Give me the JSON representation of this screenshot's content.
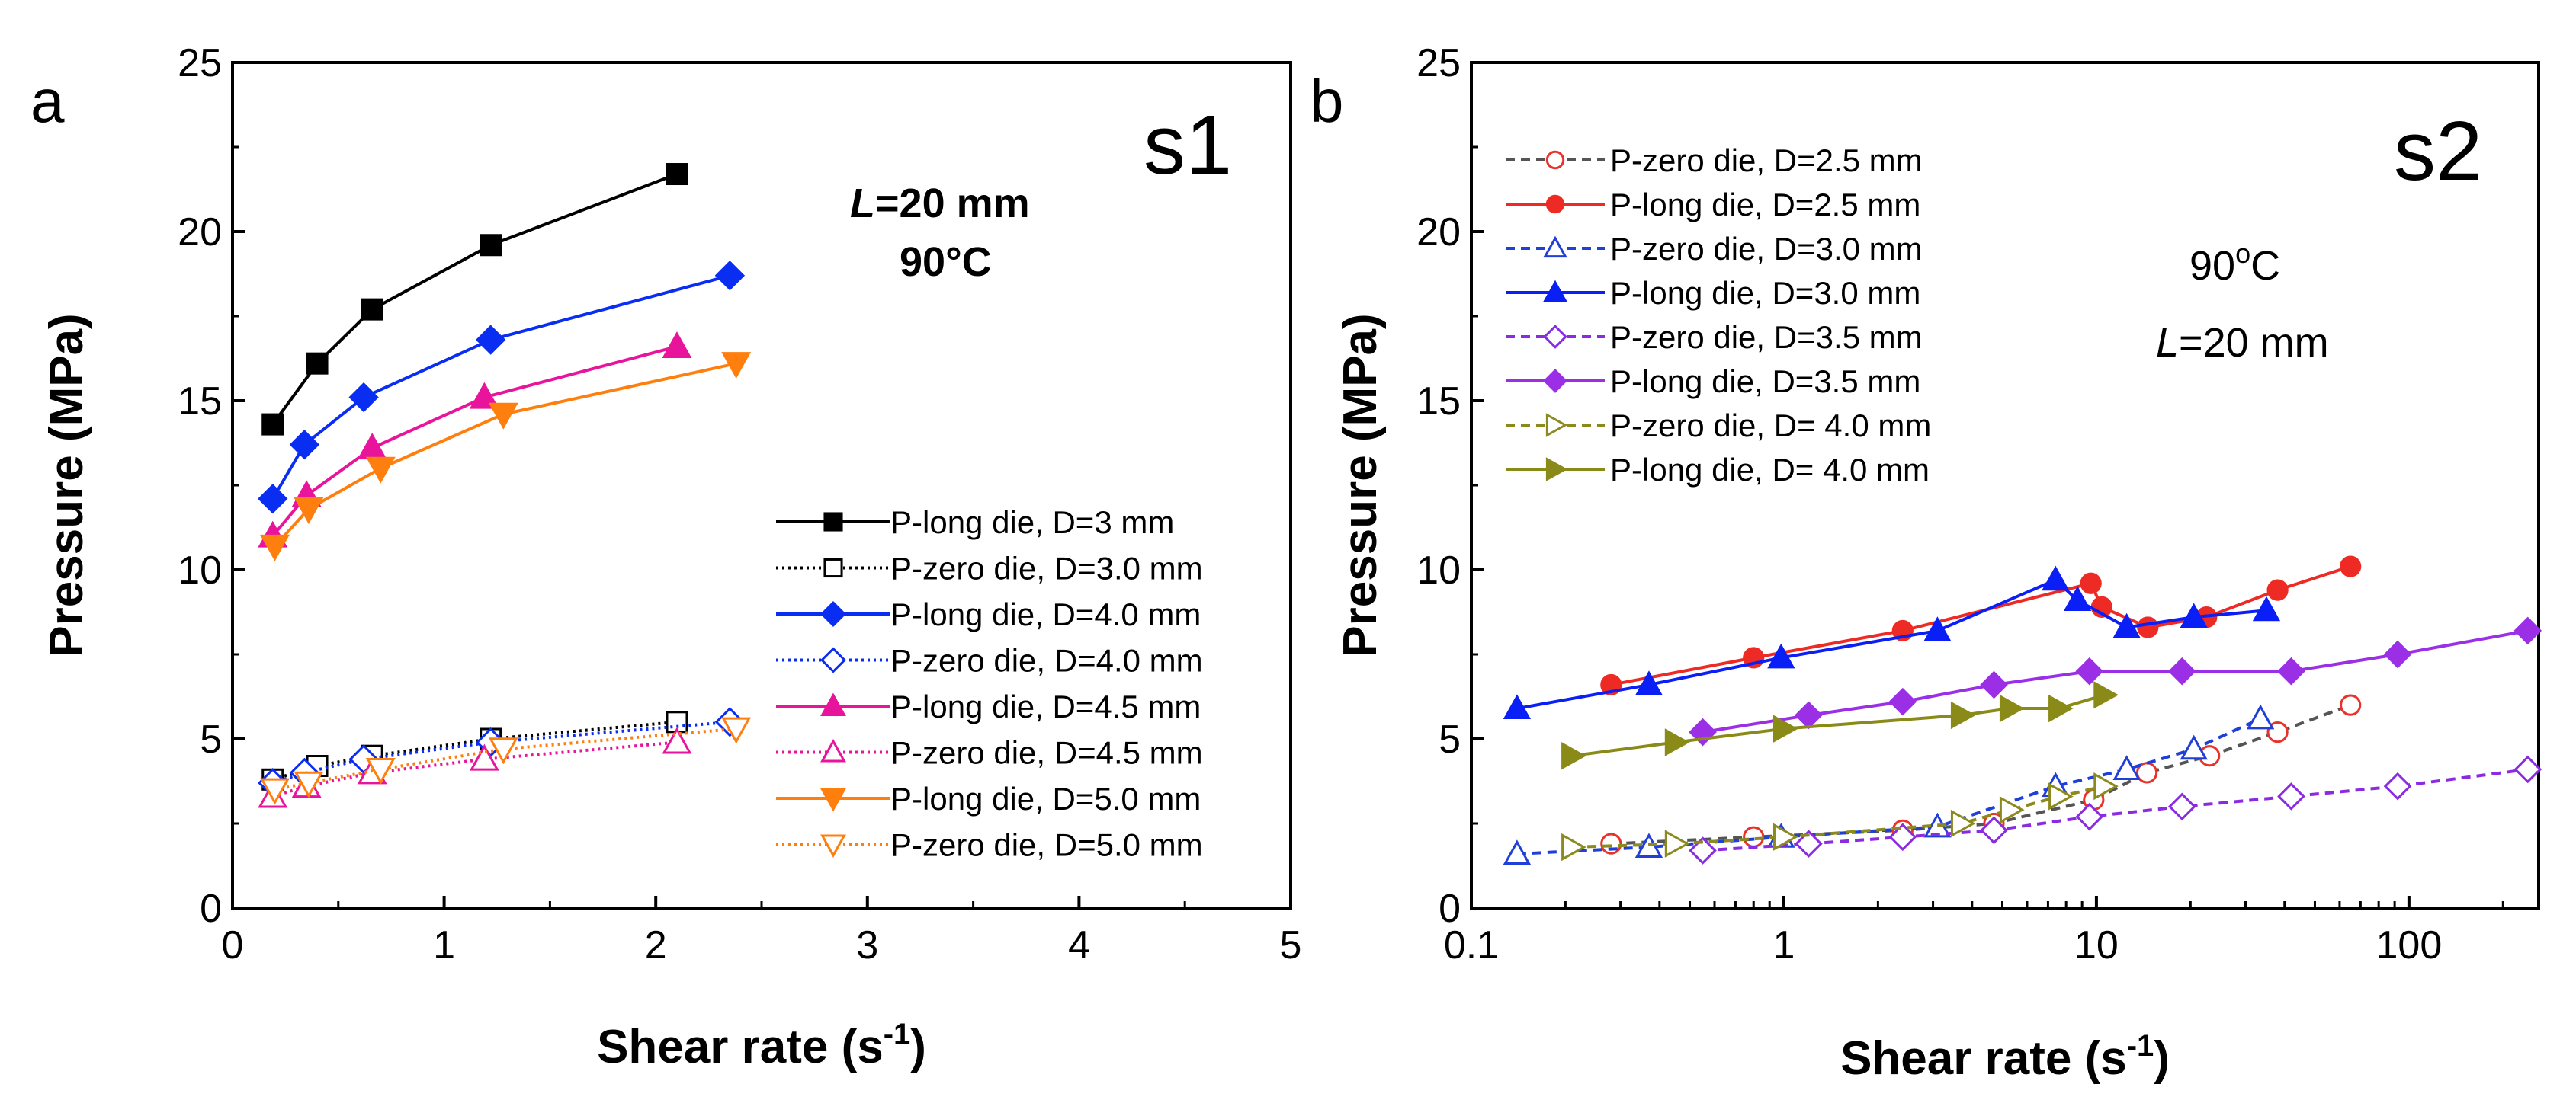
{
  "chart_data": [
    {
      "panel": "a",
      "type": "line",
      "panel_label": "a",
      "panel_title": "s1",
      "xlabel_main": "Shear rate (s",
      "xlabel_sup": "-1",
      "xlabel_close": ")",
      "ylabel": "Pressure (MPa)",
      "xscale": "linear",
      "xlim": [
        0,
        5
      ],
      "ylim": [
        0,
        25
      ],
      "xticks": [
        0,
        1,
        2,
        3,
        4,
        5
      ],
      "xtick_labels": [
        "0",
        "1",
        "2",
        "3",
        "4",
        "5"
      ],
      "yticks": [
        0,
        5,
        10,
        15,
        20,
        25
      ],
      "ytick_labels": [
        "0",
        "5",
        "10",
        "15",
        "20",
        "25"
      ],
      "legend_position": "bottom-right",
      "annotation_line1_italic": "L",
      "annotation_line1_rest": "=20 mm",
      "annotation_line2": "90°C",
      "series": [
        {
          "name": "P-long die, D=3 mm",
          "color": "#000000",
          "marker": "square",
          "filled": true,
          "dash": "solid",
          "x": [
            0.19,
            0.4,
            0.66,
            1.22,
            2.1
          ],
          "y": [
            14.3,
            16.1,
            17.7,
            19.6,
            21.7
          ]
        },
        {
          "name": "P-zero die, D=3.0 mm",
          "color": "#000000",
          "marker": "square",
          "filled": false,
          "dash": "dotted",
          "x": [
            0.19,
            0.4,
            0.66,
            1.22,
            2.1
          ],
          "y": [
            3.8,
            4.2,
            4.5,
            5.0,
            5.5
          ]
        },
        {
          "name": "P-long die, D=4.0 mm",
          "color": "#0a2df2",
          "marker": "diamond",
          "filled": true,
          "dash": "solid",
          "x": [
            0.19,
            0.34,
            0.62,
            1.22,
            2.35
          ],
          "y": [
            12.1,
            13.7,
            15.1,
            16.8,
            18.7
          ]
        },
        {
          "name": "P-zero die, D=4.0 mm",
          "color": "#0a2df2",
          "marker": "diamond",
          "filled": false,
          "dash": "dotted",
          "x": [
            0.19,
            0.34,
            0.62,
            1.22,
            2.35
          ],
          "y": [
            3.7,
            4.0,
            4.4,
            4.9,
            5.5
          ]
        },
        {
          "name": "P-long die, D=4.5 mm",
          "color": "#e8159c",
          "marker": "triangle-up",
          "filled": true,
          "dash": "solid",
          "x": [
            0.19,
            0.35,
            0.66,
            1.19,
            2.1
          ],
          "y": [
            11.0,
            12.2,
            13.6,
            15.1,
            16.6
          ]
        },
        {
          "name": "P-zero die, D=4.5 mm",
          "color": "#e8159c",
          "marker": "triangle-up",
          "filled": false,
          "dash": "dotted",
          "x": [
            0.19,
            0.35,
            0.66,
            1.19,
            2.1
          ],
          "y": [
            3.3,
            3.6,
            4.0,
            4.4,
            4.9
          ]
        },
        {
          "name": "P-long die, D=5.0 mm",
          "color": "#ff7f0e",
          "marker": "triangle-down",
          "filled": true,
          "dash": "solid",
          "x": [
            0.2,
            0.36,
            0.7,
            1.28,
            2.38
          ],
          "y": [
            10.7,
            11.8,
            13.0,
            14.6,
            16.1
          ]
        },
        {
          "name": "P-zero die, D=5.0 mm",
          "color": "#ff7f0e",
          "marker": "triangle-down",
          "filled": false,
          "dash": "dotted",
          "x": [
            0.2,
            0.36,
            0.7,
            1.28,
            2.38
          ],
          "y": [
            3.5,
            3.7,
            4.1,
            4.7,
            5.3
          ]
        }
      ]
    },
    {
      "panel": "b",
      "type": "line",
      "panel_label": "b",
      "panel_title": "s2",
      "xlabel_main": "Shear rate (s",
      "xlabel_sup": "-1",
      "xlabel_close": ")",
      "ylabel": "Pressure (MPa)",
      "xscale": "log",
      "xlim": [
        0.1,
        260
      ],
      "ylim": [
        0,
        25
      ],
      "xticks": [
        0.1,
        1,
        10,
        100
      ],
      "xtick_labels": [
        "0.1",
        "1",
        "10",
        "100"
      ],
      "yticks": [
        0,
        5,
        10,
        15,
        20,
        25
      ],
      "ytick_labels": [
        "0",
        "5",
        "10",
        "15",
        "20",
        "25"
      ],
      "legend_position": "top-left",
      "annotation_line1_base": "90",
      "annotation_line1_sup": "o",
      "annotation_line1_rest": "C",
      "annotation_line2_italic": "L",
      "annotation_line2_rest": "=20 mm",
      "series": [
        {
          "name": "P-zero die, D=2.5 mm",
          "color": "#555555",
          "marker_color": "#e8332b",
          "marker": "circle",
          "filled": false,
          "dash": "dashed",
          "x": [
            0.28,
            0.8,
            2.4,
            4.7,
            9.8,
            14.5,
            23,
            38,
            65
          ],
          "y": [
            1.9,
            2.1,
            2.3,
            2.5,
            3.2,
            4.0,
            4.5,
            5.2,
            6.0
          ]
        },
        {
          "name": "P-long die, D=2.5 mm",
          "color": "#ee2a24",
          "marker": "circle",
          "filled": true,
          "dash": "solid",
          "x": [
            0.28,
            0.8,
            2.4,
            9.6,
            10.4,
            14.6,
            22.5,
            38,
            65
          ],
          "y": [
            6.6,
            7.4,
            8.2,
            9.6,
            8.9,
            8.3,
            8.6,
            9.4,
            10.1
          ]
        },
        {
          "name": "P-zero die, D=3.0 mm",
          "color": "#1f3fd8",
          "marker": "triangle-up",
          "filled": false,
          "dash": "dashed",
          "x": [
            0.14,
            0.37,
            0.98,
            3.1,
            7.4,
            12.5,
            20.5,
            33.5
          ],
          "y": [
            1.6,
            1.8,
            2.1,
            2.4,
            3.6,
            4.1,
            4.7,
            5.6
          ]
        },
        {
          "name": "P-long die, D=3.0 mm",
          "color": "#0a1ff5",
          "marker": "triangle-up",
          "filled": true,
          "dash": "solid",
          "x": [
            0.14,
            0.37,
            0.98,
            3.1,
            7.4,
            8.7,
            12.5,
            20.5,
            35
          ],
          "y": [
            5.9,
            6.6,
            7.4,
            8.2,
            9.7,
            9.1,
            8.3,
            8.6,
            8.8
          ]
        },
        {
          "name": "P-zero die, D=3.5 mm",
          "color": "#8a2be2",
          "marker": "diamond",
          "filled": false,
          "dash": "dashed",
          "x": [
            0.55,
            1.2,
            2.4,
            4.7,
            9.5,
            18.8,
            42,
            92,
            240
          ],
          "y": [
            1.7,
            1.9,
            2.1,
            2.3,
            2.7,
            3.0,
            3.3,
            3.6,
            4.1
          ]
        },
        {
          "name": "P-long die, D=3.5 mm",
          "color": "#9b2fe6",
          "marker": "diamond",
          "filled": true,
          "dash": "solid",
          "x": [
            0.55,
            1.2,
            2.4,
            4.7,
            9.5,
            18.8,
            42,
            92,
            240
          ],
          "y": [
            5.2,
            5.7,
            6.1,
            6.6,
            7.0,
            7.0,
            7.0,
            7.5,
            8.2
          ]
        },
        {
          "name": "P-zero die, D= 4.0 mm",
          "color": "#8c8a1e",
          "marker": "triangle-right",
          "filled": false,
          "dash": "dashed",
          "x": [
            0.21,
            0.45,
            1.0,
            3.7,
            5.3,
            7.6,
            10.6
          ],
          "y": [
            1.8,
            1.9,
            2.1,
            2.5,
            2.9,
            3.3,
            3.6
          ]
        },
        {
          "name": "P-long die, D= 4.0 mm",
          "color": "#8a8a18",
          "marker": "triangle-right",
          "filled": true,
          "dash": "solid",
          "x": [
            0.21,
            0.45,
            1.0,
            3.7,
            5.3,
            7.6,
            10.6
          ],
          "y": [
            4.5,
            4.9,
            5.3,
            5.7,
            5.9,
            5.9,
            6.3
          ]
        }
      ]
    }
  ]
}
